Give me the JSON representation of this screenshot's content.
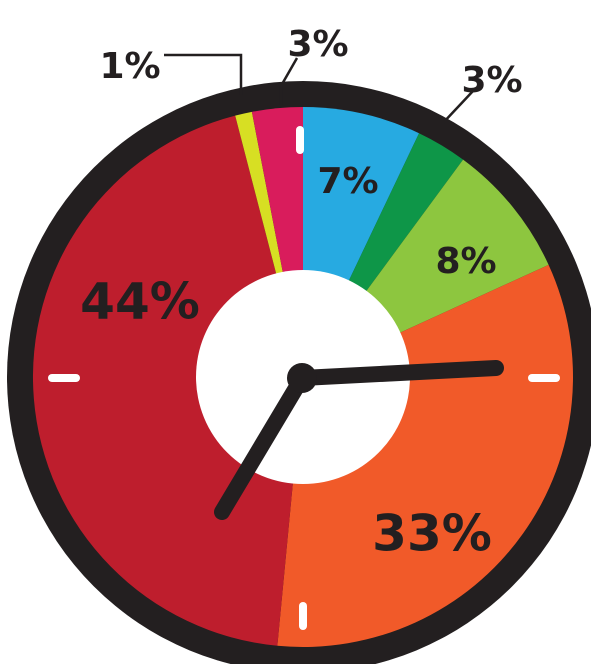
{
  "chart_data": {
    "type": "pie",
    "title": "",
    "slices": [
      {
        "label": "7%",
        "value": 7,
        "color": "#27aae1"
      },
      {
        "label": "3%",
        "value": 3,
        "color": "#0e9648"
      },
      {
        "label": "8%",
        "value": 8,
        "color": "#8dc63f"
      },
      {
        "label": "33%",
        "value": 33,
        "color": "#f15a29"
      },
      {
        "label": "44%",
        "value": 44,
        "color": "#be1e2d"
      },
      {
        "label": "1%",
        "value": 1,
        "color": "#d7df23"
      },
      {
        "label": "3%",
        "value": 3,
        "color": "#d91c5c"
      }
    ],
    "style": "clock-face",
    "hour_hand_points_to": "about 7 o'clock",
    "minute_hand_points_to": "about 3 o'clock",
    "bezel_color": "#231f20",
    "hub_color": "#ffffff",
    "tick_color": "#ffffff"
  }
}
